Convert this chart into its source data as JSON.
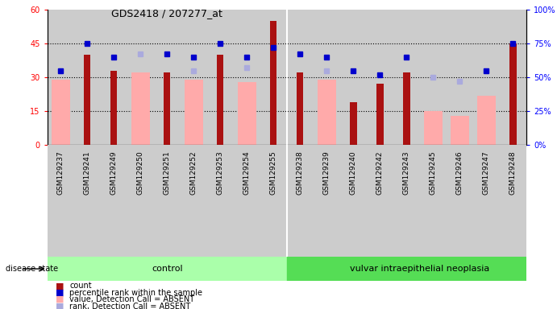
{
  "title": "GDS2418 / 207277_at",
  "samples": [
    "GSM129237",
    "GSM129241",
    "GSM129249",
    "GSM129250",
    "GSM129251",
    "GSM129252",
    "GSM129253",
    "GSM129254",
    "GSM129255",
    "GSM129238",
    "GSM129239",
    "GSM129240",
    "GSM129242",
    "GSM129243",
    "GSM129245",
    "GSM129246",
    "GSM129247",
    "GSM129248"
  ],
  "count_red": [
    0,
    40,
    33,
    0,
    32,
    0,
    40,
    0,
    55,
    32,
    0,
    19,
    27,
    32,
    0,
    0,
    0,
    45
  ],
  "value_pink": [
    29,
    0,
    0,
    32,
    0,
    29,
    0,
    28,
    0,
    0,
    29,
    0,
    0,
    0,
    15,
    13,
    22,
    0
  ],
  "percentile_blue": [
    55,
    75,
    65,
    0,
    67,
    65,
    75,
    65,
    72,
    67,
    65,
    55,
    52,
    65,
    0,
    0,
    55,
    75
  ],
  "rank_lightblue": [
    55,
    0,
    0,
    67,
    0,
    55,
    0,
    57,
    0,
    0,
    55,
    0,
    0,
    0,
    50,
    47,
    55,
    0
  ],
  "ylim_left": [
    0,
    60
  ],
  "ylim_right": [
    0,
    100
  ],
  "yticks_left": [
    0,
    15,
    30,
    45,
    60
  ],
  "yticks_right": [
    0,
    25,
    50,
    75,
    100
  ],
  "ytick_labels_right": [
    "0%",
    "25%",
    "50%",
    "75%",
    "100%"
  ],
  "red_color": "#aa1111",
  "pink_color": "#ffaaaa",
  "blue_color": "#0000cc",
  "lightblue_color": "#aaaadd",
  "bg_color": "#cccccc",
  "control_color": "#aaffaa",
  "disease_color": "#55dd55",
  "n_control": 9,
  "legend_items": [
    "count",
    "percentile rank within the sample",
    "value, Detection Call = ABSENT",
    "rank, Detection Call = ABSENT"
  ]
}
